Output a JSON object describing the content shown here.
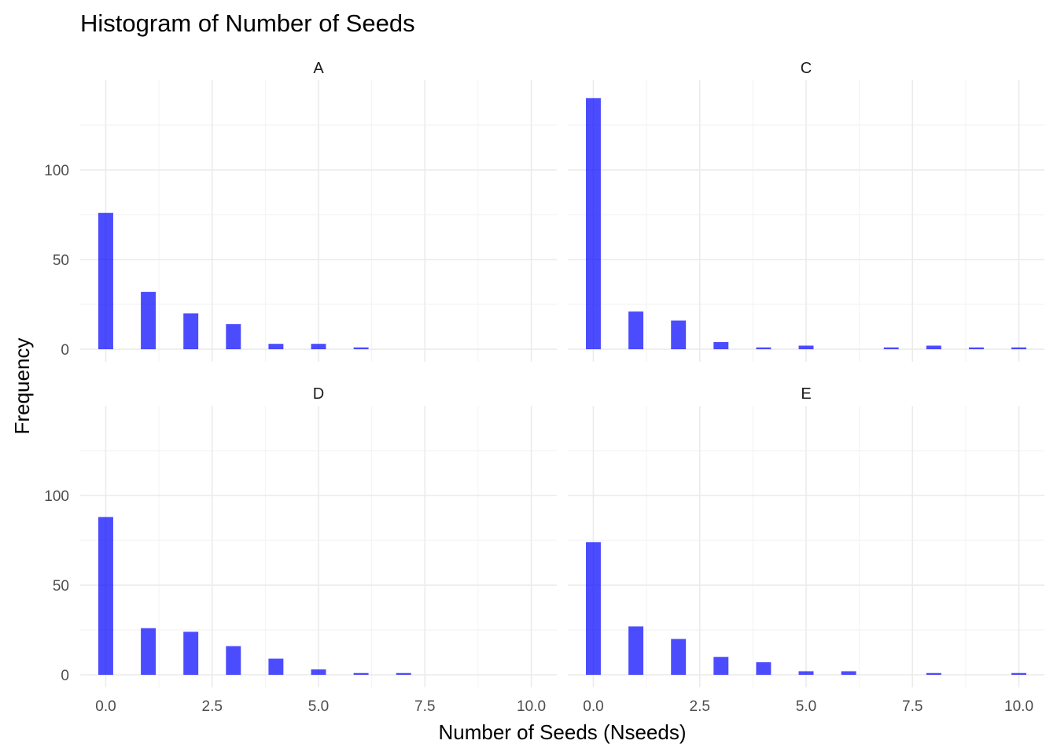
{
  "chart_data": {
    "type": "bar",
    "title": "Histogram of Number of Seeds",
    "xlabel": "Number of Seeds (Nseeds)",
    "ylabel": "Frequency",
    "xlim": [
      -0.6,
      10.6
    ],
    "ylim": [
      -7,
      150
    ],
    "x_ticks": [
      0,
      2.5,
      5,
      7.5,
      10
    ],
    "x_tick_labels": [
      "0.0",
      "2.5",
      "5.0",
      "7.5",
      "10.0"
    ],
    "y_ticks": [
      0,
      50,
      100
    ],
    "y_tick_labels": [
      "0",
      "50",
      "100"
    ],
    "grid": true,
    "bar_color": "#0000ff",
    "bar_opacity": 0.7,
    "bin_width": 0.35,
    "panels": [
      {
        "label": "A",
        "x": [
          0,
          1,
          2,
          3,
          4,
          5,
          6
        ],
        "values": [
          76,
          32,
          20,
          14,
          3,
          3,
          1
        ]
      },
      {
        "label": "C",
        "x": [
          0,
          1,
          2,
          3,
          4,
          5,
          7,
          8,
          9,
          10
        ],
        "values": [
          140,
          21,
          16,
          4,
          1,
          2,
          1,
          2,
          1,
          1
        ]
      },
      {
        "label": "D",
        "x": [
          0,
          1,
          2,
          3,
          4,
          5,
          6,
          7
        ],
        "values": [
          88,
          26,
          24,
          16,
          9,
          3,
          1,
          1
        ]
      },
      {
        "label": "E",
        "x": [
          0,
          1,
          2,
          3,
          4,
          5,
          6,
          8,
          10
        ],
        "values": [
          74,
          27,
          20,
          10,
          7,
          2,
          2,
          1,
          1
        ]
      }
    ]
  }
}
